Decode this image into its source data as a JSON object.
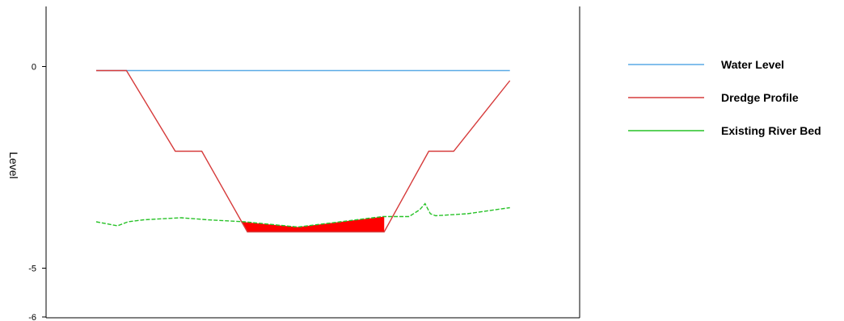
{
  "chart_data": {
    "type": "line",
    "title": "",
    "xlabel": "",
    "ylabel": "Level",
    "ylim": [
      -6.25,
      1.25
    ],
    "xlim": [
      0,
      100
    ],
    "yticks": [
      {
        "value": 0,
        "label": "0"
      },
      {
        "value": -5,
        "label": "-5"
      },
      {
        "value": -6.25,
        "label": "-6"
      }
    ],
    "grid": false,
    "legend_position": "right",
    "series": [
      {
        "name": "Water Level",
        "color": "#5aaae6",
        "dash": false,
        "x": [
          9,
          87
        ],
        "y": [
          -0.1,
          -0.1
        ]
      },
      {
        "name": "Dredge Profile",
        "color": "#d63b3b",
        "dash": false,
        "x": [
          9,
          14.7,
          23.9,
          28.9,
          37.5,
          63.3,
          71.7,
          76.4,
          87
        ],
        "y": [
          -0.1,
          -0.1,
          -2.1,
          -2.1,
          -4.1,
          -4.1,
          -2.1,
          -2.1,
          -0.35
        ]
      },
      {
        "name": "Existing River Bed",
        "color": "#27c227",
        "dash": true,
        "x": [
          9,
          13,
          15,
          18,
          25,
          30,
          37,
          47,
          55,
          63,
          68,
          70,
          71,
          72,
          73,
          79,
          87
        ],
        "y": [
          -3.85,
          -3.95,
          -3.85,
          -3.8,
          -3.75,
          -3.8,
          -3.85,
          -3.98,
          -3.85,
          -3.72,
          -3.72,
          -3.55,
          -3.4,
          -3.65,
          -3.7,
          -3.65,
          -3.5
        ]
      }
    ],
    "highlight": {
      "color": "#ff0000",
      "top": {
        "x": [
          36.3,
          47,
          63.3
        ],
        "y": [
          -3.85,
          -3.98,
          -3.72
        ]
      },
      "bottom": {
        "x": [
          37.5,
          63.3
        ],
        "y": [
          -4.1,
          -4.1
        ]
      }
    }
  }
}
